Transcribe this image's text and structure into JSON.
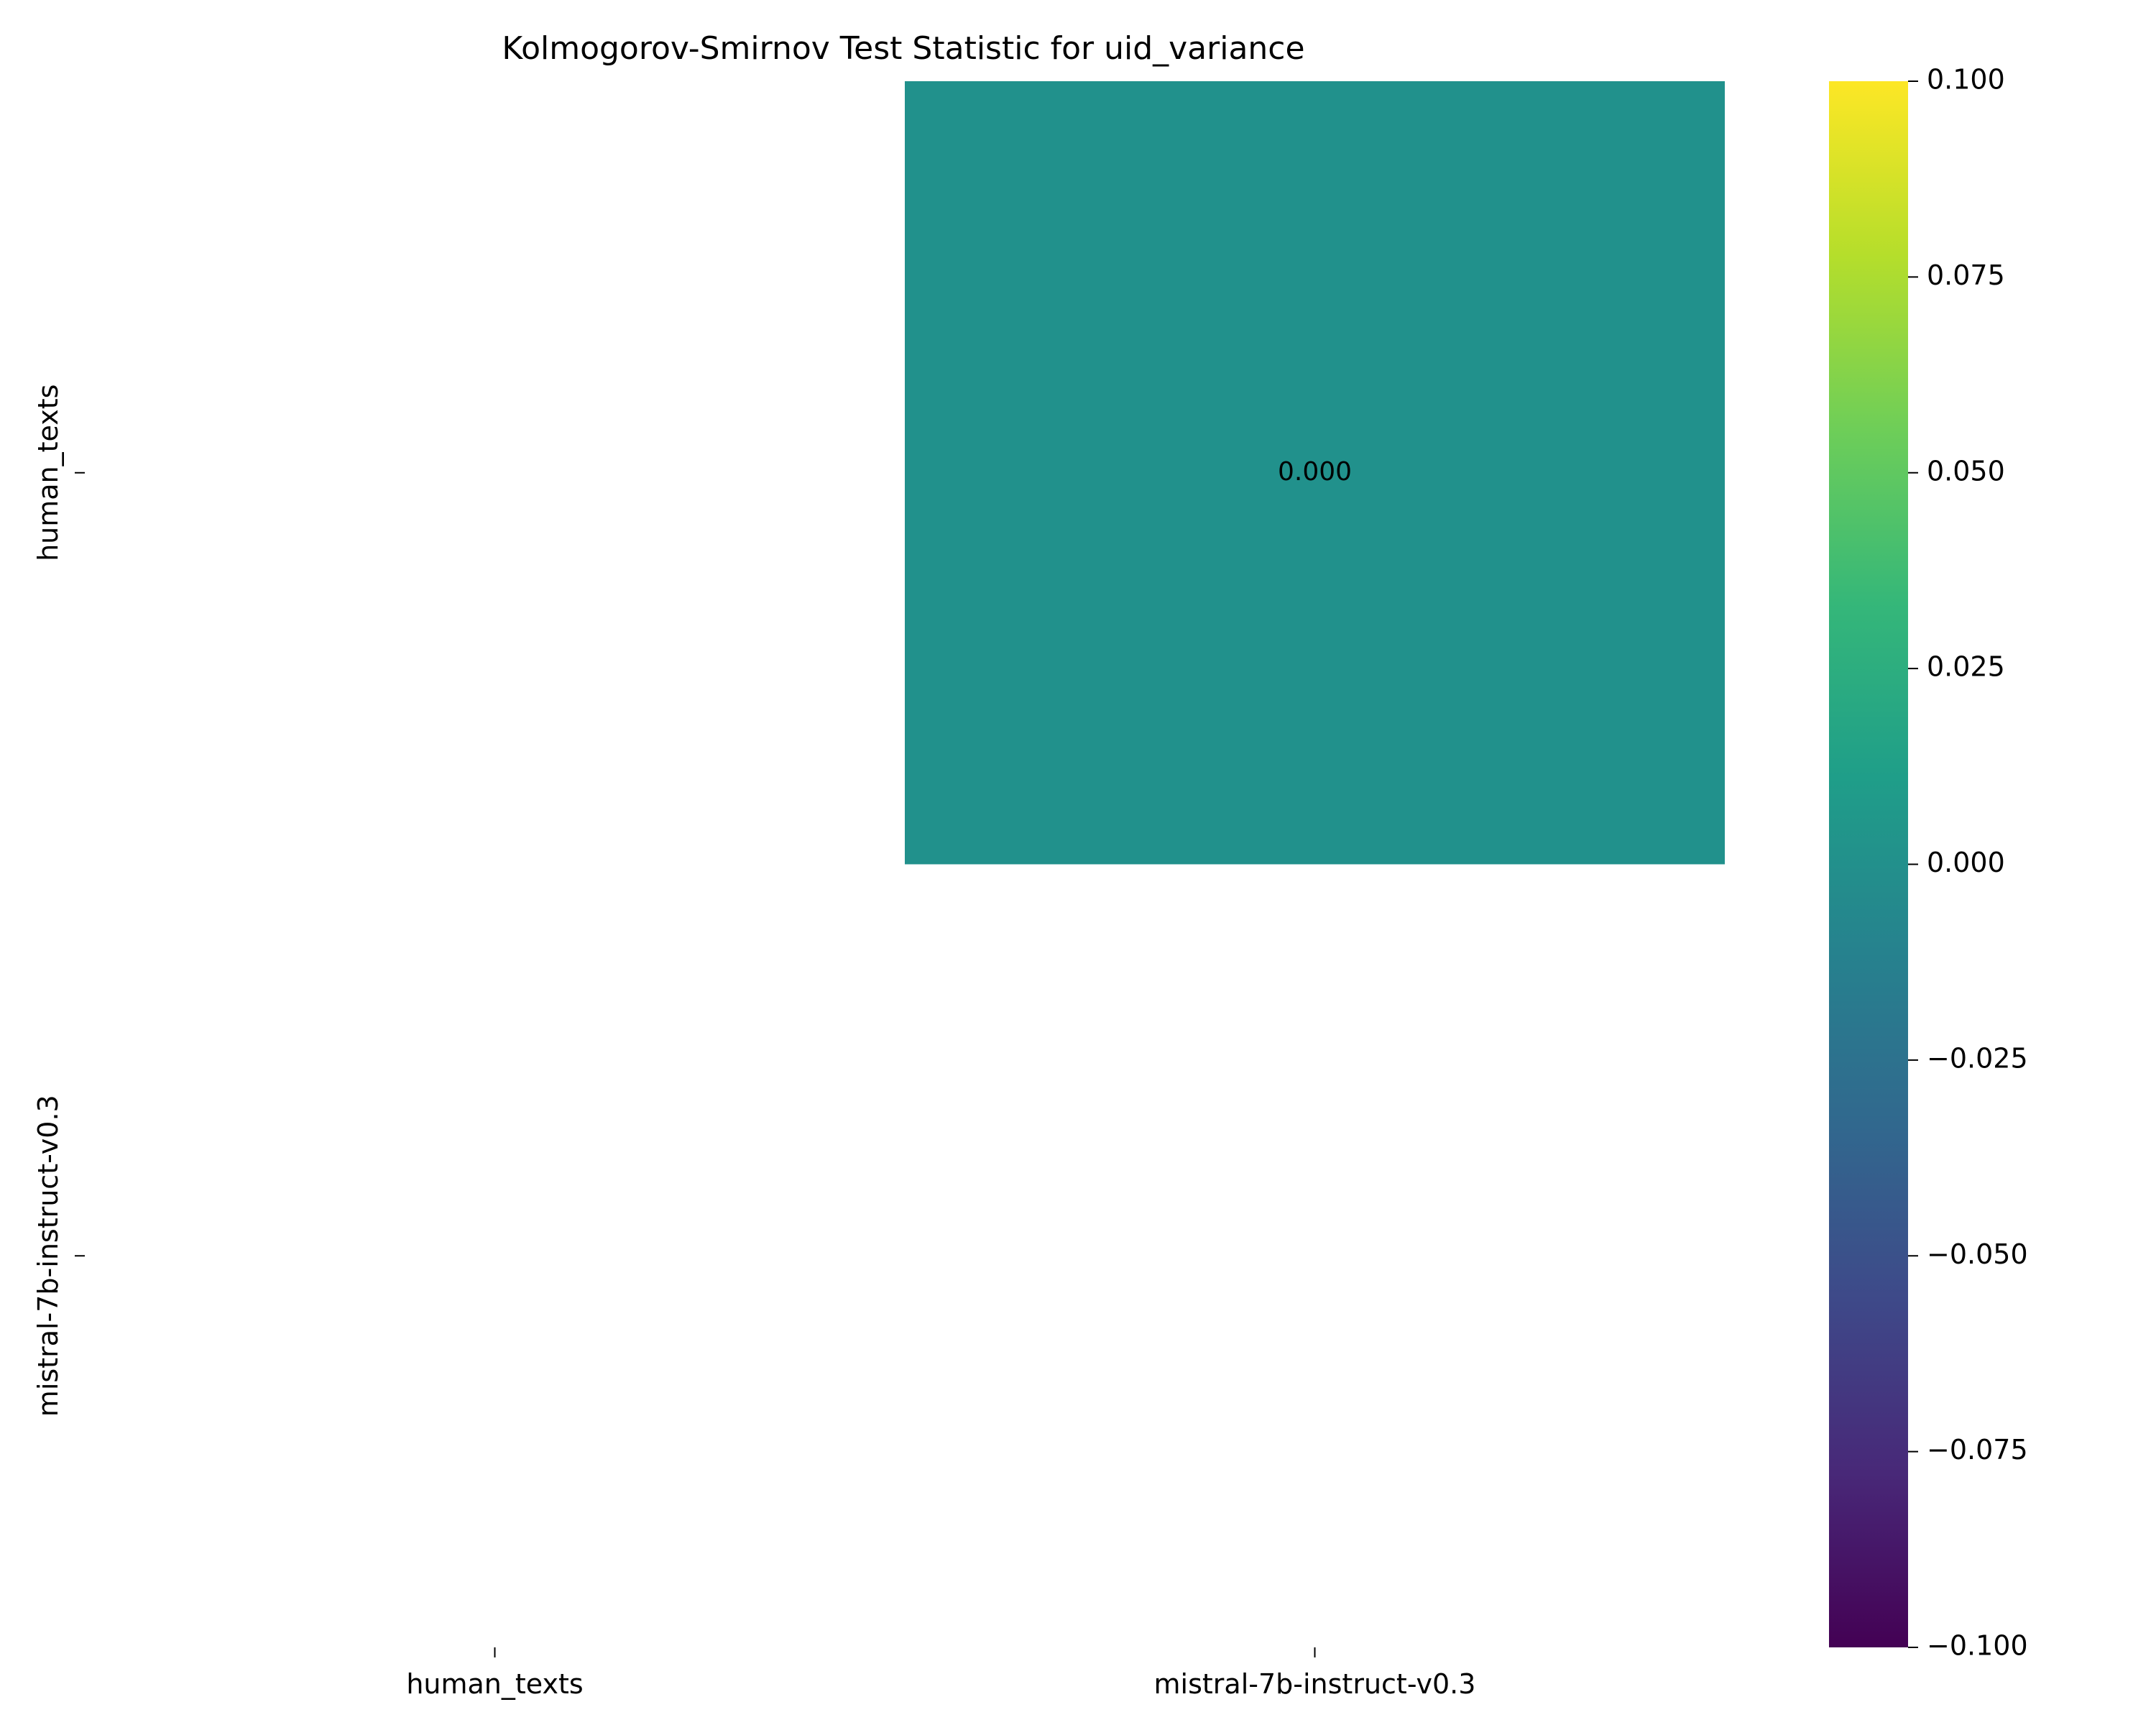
{
  "chart_data": {
    "type": "heatmap",
    "title": "Kolmogorov-Smirnov Test Statistic for uid_variance",
    "rows": [
      "human_texts",
      "mistral-7b-instruct-v0.3"
    ],
    "cols": [
      "human_texts",
      "mistral-7b-instruct-v0.3"
    ],
    "cells": [
      {
        "row": 0,
        "col": 1,
        "value": 0.0,
        "label": "0.000"
      }
    ],
    "masked": "lower triangle and diagonal (blank)",
    "colormap": "viridis",
    "colorbar": {
      "range": [
        -0.1,
        0.1
      ],
      "ticks": [
        "0.100",
        "0.075",
        "0.050",
        "0.025",
        "0.000",
        "−0.025",
        "−0.050",
        "−0.075",
        "−0.100"
      ],
      "tick_values": [
        0.1,
        0.075,
        0.05,
        0.025,
        0.0,
        -0.025,
        -0.05,
        -0.075,
        -0.1
      ]
    },
    "xlabel": "",
    "ylabel": "",
    "grid": false
  },
  "colors": {
    "cell_fill": "#21918c",
    "annotation_text": "#ffffff",
    "viridis_stops": [
      "#440154",
      "#482878",
      "#3e4989",
      "#31688e",
      "#26828e",
      "#1f9e89",
      "#35b779",
      "#6ece58",
      "#b5de2b",
      "#fde725"
    ]
  }
}
